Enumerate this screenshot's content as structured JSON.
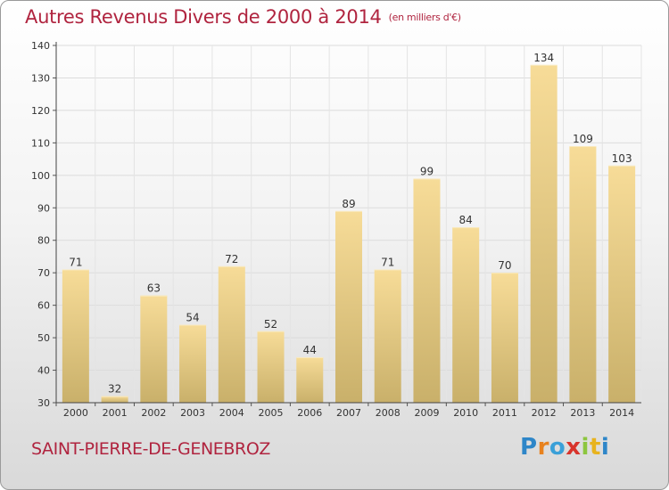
{
  "header": {
    "title": "Autres Revenus Divers de 2000 à 2014",
    "unit": "(en milliers d'€)"
  },
  "footer": {
    "city": "SAINT-PIERRE-DE-GENEBROZ",
    "logo_letters": [
      {
        "ch": "P",
        "color": "#2e86c8"
      },
      {
        "ch": "r",
        "color": "#e8821e"
      },
      {
        "ch": "o",
        "color": "#3aa0d8"
      },
      {
        "ch": "x",
        "color": "#d8342c"
      },
      {
        "ch": "i",
        "color": "#8cc63f"
      },
      {
        "ch": "t",
        "color": "#e8b31e"
      },
      {
        "ch": "i",
        "color": "#2e86c8"
      }
    ]
  },
  "chart_data": {
    "type": "bar",
    "categories": [
      "2000",
      "2001",
      "2002",
      "2003",
      "2004",
      "2005",
      "2006",
      "2007",
      "2008",
      "2009",
      "2010",
      "2011",
      "2012",
      "2013",
      "2014"
    ],
    "values": [
      71,
      32,
      63,
      54,
      72,
      52,
      44,
      89,
      71,
      99,
      84,
      70,
      134,
      109,
      103
    ],
    "ylim": [
      30,
      140
    ],
    "yticks": [
      30,
      40,
      50,
      60,
      70,
      80,
      90,
      100,
      110,
      120,
      130,
      140
    ],
    "grid": true,
    "bar_color_top": "#f7dc98",
    "bar_color_bottom": "#c9b06a"
  }
}
